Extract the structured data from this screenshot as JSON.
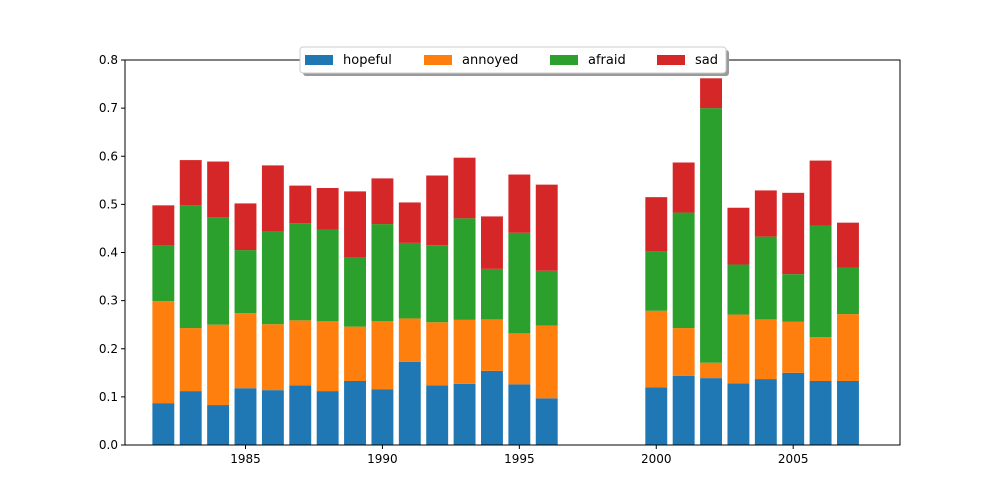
{
  "chart_data": {
    "type": "bar",
    "stacked": true,
    "title": "",
    "xlabel": "",
    "ylabel": "",
    "xlim": [
      1980.6,
      2008.9
    ],
    "ylim": [
      0,
      0.8
    ],
    "x_ticks": [
      1985,
      1990,
      1995,
      2000,
      2005
    ],
    "y_ticks": [
      0.0,
      0.1,
      0.2,
      0.3,
      0.4,
      0.5,
      0.6,
      0.7,
      0.8
    ],
    "grid": false,
    "legend": {
      "placement": "top-center",
      "columns": 4
    },
    "colors": {
      "hopeful": "#1f77b4",
      "annoyed": "#ff7f0e",
      "afraid": "#2ca02c",
      "sad": "#d62728"
    },
    "x": [
      1982,
      1983,
      1984,
      1985,
      1986,
      1987,
      1988,
      1989,
      1990,
      1991,
      1992,
      1993,
      1994,
      1995,
      1996,
      2000,
      2001,
      2002,
      2003,
      2004,
      2005,
      2006,
      2007
    ],
    "series": [
      {
        "name": "hopeful",
        "values": [
          0.087,
          0.112,
          0.083,
          0.118,
          0.114,
          0.124,
          0.112,
          0.133,
          0.116,
          0.173,
          0.124,
          0.127,
          0.154,
          0.126,
          0.097,
          0.12,
          0.144,
          0.139,
          0.128,
          0.137,
          0.15,
          0.133,
          0.133
        ]
      },
      {
        "name": "annoyed",
        "values": [
          0.212,
          0.131,
          0.167,
          0.156,
          0.137,
          0.135,
          0.145,
          0.113,
          0.141,
          0.09,
          0.131,
          0.133,
          0.107,
          0.106,
          0.151,
          0.159,
          0.099,
          0.032,
          0.143,
          0.124,
          0.106,
          0.091,
          0.139
        ]
      },
      {
        "name": "afraid",
        "values": [
          0.115,
          0.255,
          0.223,
          0.131,
          0.192,
          0.202,
          0.19,
          0.143,
          0.202,
          0.157,
          0.16,
          0.211,
          0.105,
          0.209,
          0.114,
          0.124,
          0.24,
          0.529,
          0.104,
          0.172,
          0.099,
          0.232,
          0.096
        ]
      },
      {
        "name": "sad",
        "values": [
          0.084,
          0.094,
          0.116,
          0.097,
          0.138,
          0.078,
          0.087,
          0.138,
          0.095,
          0.084,
          0.145,
          0.126,
          0.109,
          0.121,
          0.179,
          0.112,
          0.104,
          0.062,
          0.118,
          0.096,
          0.169,
          0.135,
          0.094
        ]
      }
    ]
  }
}
